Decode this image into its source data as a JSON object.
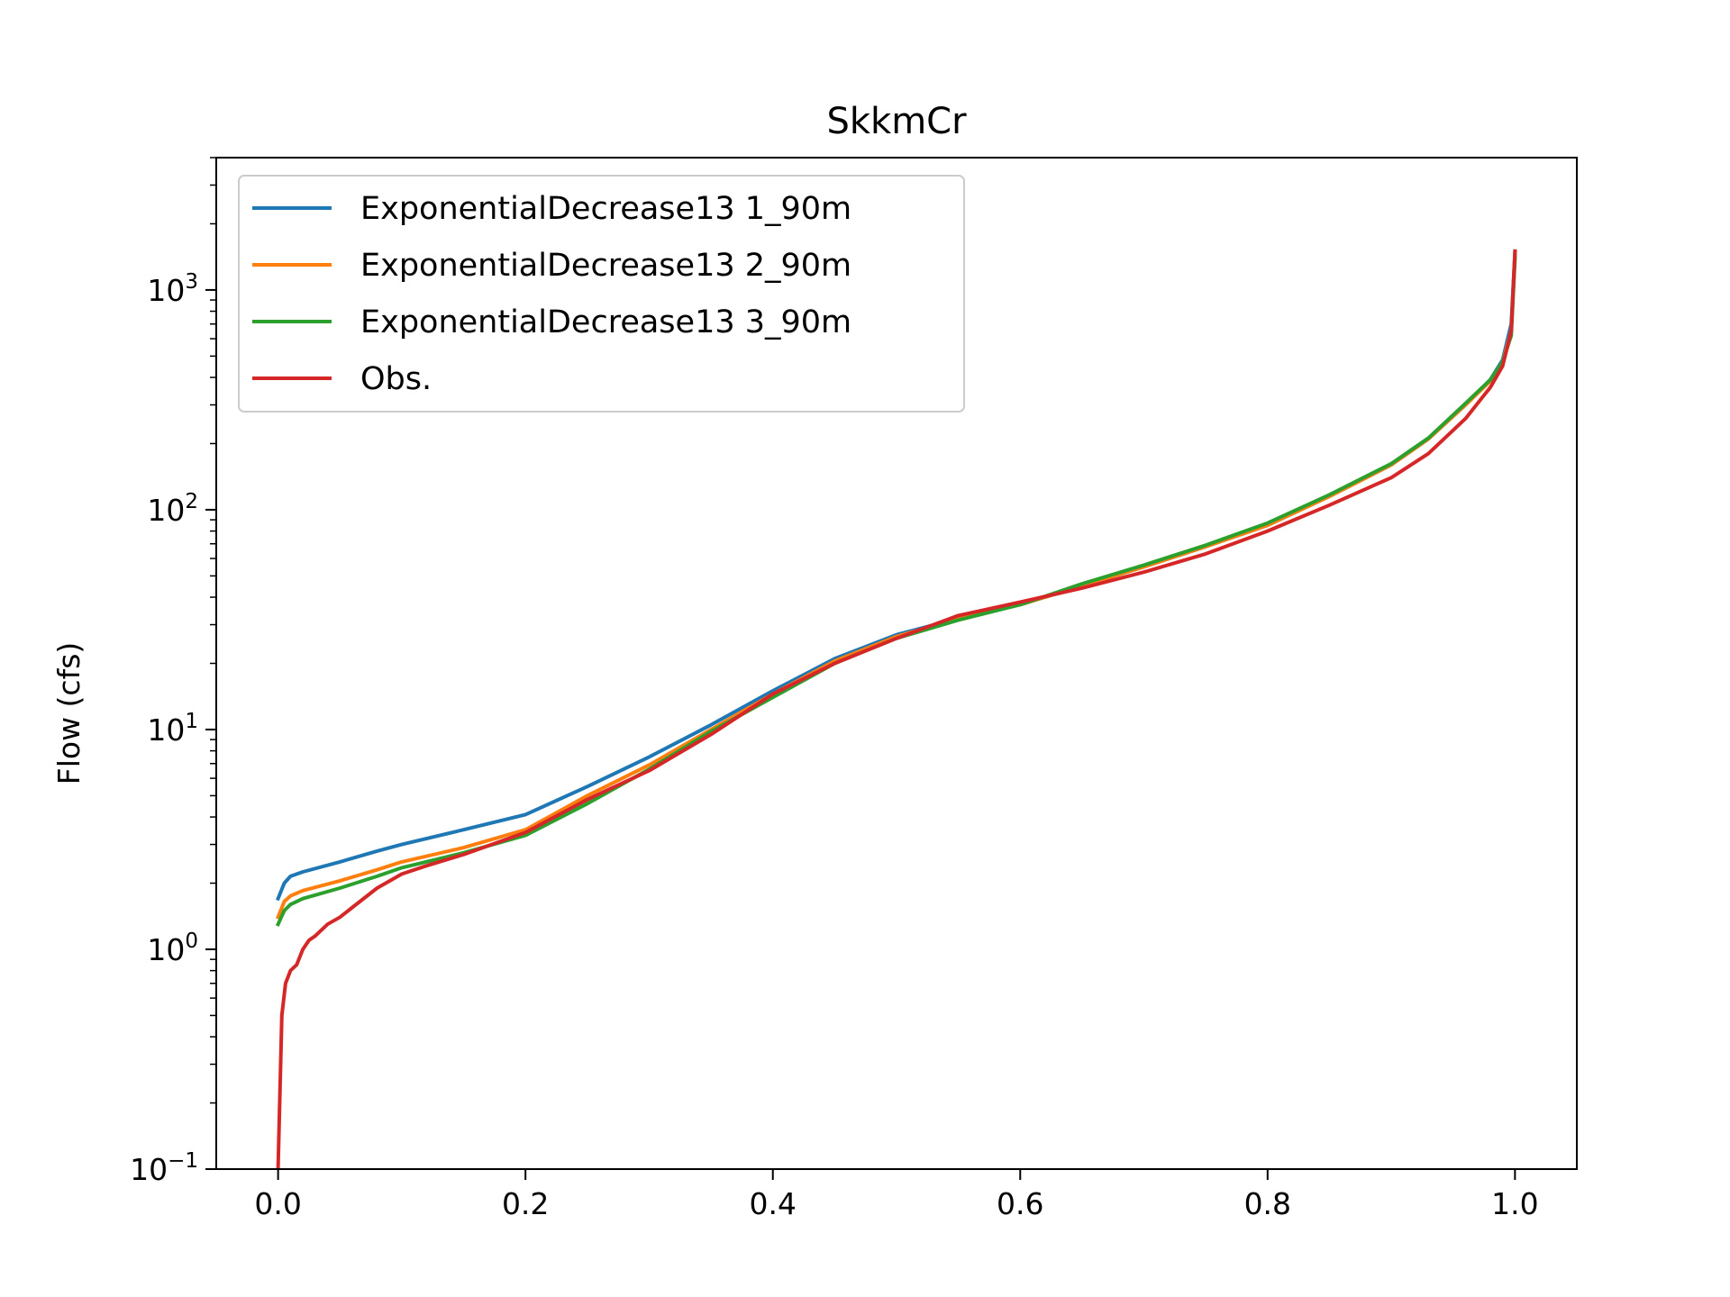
{
  "chart_data": {
    "type": "line",
    "title": "SkkmCr",
    "xlabel": "",
    "ylabel": "Flow (cfs)",
    "yscale": "log",
    "xlim": [
      -0.05,
      1.05
    ],
    "ylim": [
      0.1,
      4000
    ],
    "xticks": [
      0.0,
      0.2,
      0.4,
      0.6,
      0.8,
      1.0
    ],
    "xtick_labels": [
      "0.0",
      "0.2",
      "0.4",
      "0.6",
      "0.8",
      "1.0"
    ],
    "yticks": [
      0.1,
      1,
      10,
      100,
      1000
    ],
    "ytick_labels": [
      {
        "base": "10",
        "exp": "−1"
      },
      {
        "base": "10",
        "exp": "0"
      },
      {
        "base": "10",
        "exp": "1"
      },
      {
        "base": "10",
        "exp": "2"
      },
      {
        "base": "10",
        "exp": "3"
      }
    ],
    "grid": false,
    "legend_position": "upper-left",
    "series": [
      {
        "name": "ExponentialDecrease13 1_90m",
        "color": "#1f77b4",
        "x": [
          0.0,
          0.005,
          0.01,
          0.02,
          0.05,
          0.08,
          0.1,
          0.15,
          0.2,
          0.25,
          0.3,
          0.35,
          0.4,
          0.45,
          0.5,
          0.55,
          0.6,
          0.65,
          0.7,
          0.75,
          0.8,
          0.85,
          0.9,
          0.93,
          0.96,
          0.98,
          0.99,
          0.997,
          1.0
        ],
        "y": [
          1.7,
          2.0,
          2.15,
          2.25,
          2.5,
          2.8,
          3.0,
          3.5,
          4.1,
          5.5,
          7.5,
          10.5,
          15,
          21,
          27,
          32,
          37,
          45,
          55,
          68,
          85,
          115,
          160,
          210,
          300,
          390,
          480,
          700,
          1500
        ]
      },
      {
        "name": "ExponentialDecrease13 2_90m",
        "color": "#ff7f0e",
        "x": [
          0.0,
          0.005,
          0.01,
          0.02,
          0.05,
          0.08,
          0.1,
          0.15,
          0.2,
          0.25,
          0.3,
          0.35,
          0.4,
          0.45,
          0.5,
          0.55,
          0.6,
          0.65,
          0.7,
          0.75,
          0.8,
          0.85,
          0.9,
          0.93,
          0.96,
          0.98,
          0.99,
          0.997,
          1.0
        ],
        "y": [
          1.4,
          1.65,
          1.75,
          1.85,
          2.05,
          2.3,
          2.5,
          2.9,
          3.5,
          5.0,
          6.9,
          10,
          14.5,
          20.5,
          26.5,
          32,
          37,
          45,
          55,
          68,
          85,
          115,
          160,
          210,
          300,
          385,
          470,
          650,
          1450
        ]
      },
      {
        "name": "ExponentialDecrease13 3_90m",
        "color": "#2ca02c",
        "x": [
          0.0,
          0.005,
          0.01,
          0.02,
          0.05,
          0.08,
          0.1,
          0.15,
          0.2,
          0.25,
          0.3,
          0.35,
          0.4,
          0.45,
          0.5,
          0.55,
          0.6,
          0.65,
          0.7,
          0.75,
          0.8,
          0.85,
          0.9,
          0.93,
          0.96,
          0.98,
          0.99,
          0.997,
          1.0
        ],
        "y": [
          1.3,
          1.5,
          1.6,
          1.7,
          1.9,
          2.15,
          2.35,
          2.75,
          3.3,
          4.6,
          6.6,
          9.8,
          14,
          20,
          26,
          31.5,
          37,
          46,
          56,
          69,
          87,
          117,
          162,
          212,
          305,
          390,
          470,
          620,
          1400
        ]
      },
      {
        "name": "Obs.",
        "color": "#d62728",
        "x": [
          0.0,
          0.003,
          0.006,
          0.01,
          0.015,
          0.02,
          0.025,
          0.03,
          0.04,
          0.05,
          0.06,
          0.08,
          0.1,
          0.12,
          0.15,
          0.2,
          0.25,
          0.3,
          0.35,
          0.4,
          0.45,
          0.5,
          0.55,
          0.6,
          0.65,
          0.7,
          0.75,
          0.8,
          0.85,
          0.9,
          0.93,
          0.96,
          0.98,
          0.99,
          0.997,
          1.0
        ],
        "y": [
          0.1,
          0.5,
          0.7,
          0.8,
          0.85,
          1.0,
          1.1,
          1.15,
          1.3,
          1.4,
          1.55,
          1.9,
          2.2,
          2.4,
          2.7,
          3.4,
          4.8,
          6.5,
          9.5,
          14.5,
          20,
          26,
          33,
          38,
          44,
          52,
          63,
          80,
          105,
          140,
          180,
          260,
          360,
          450,
          650,
          1500
        ]
      }
    ]
  }
}
